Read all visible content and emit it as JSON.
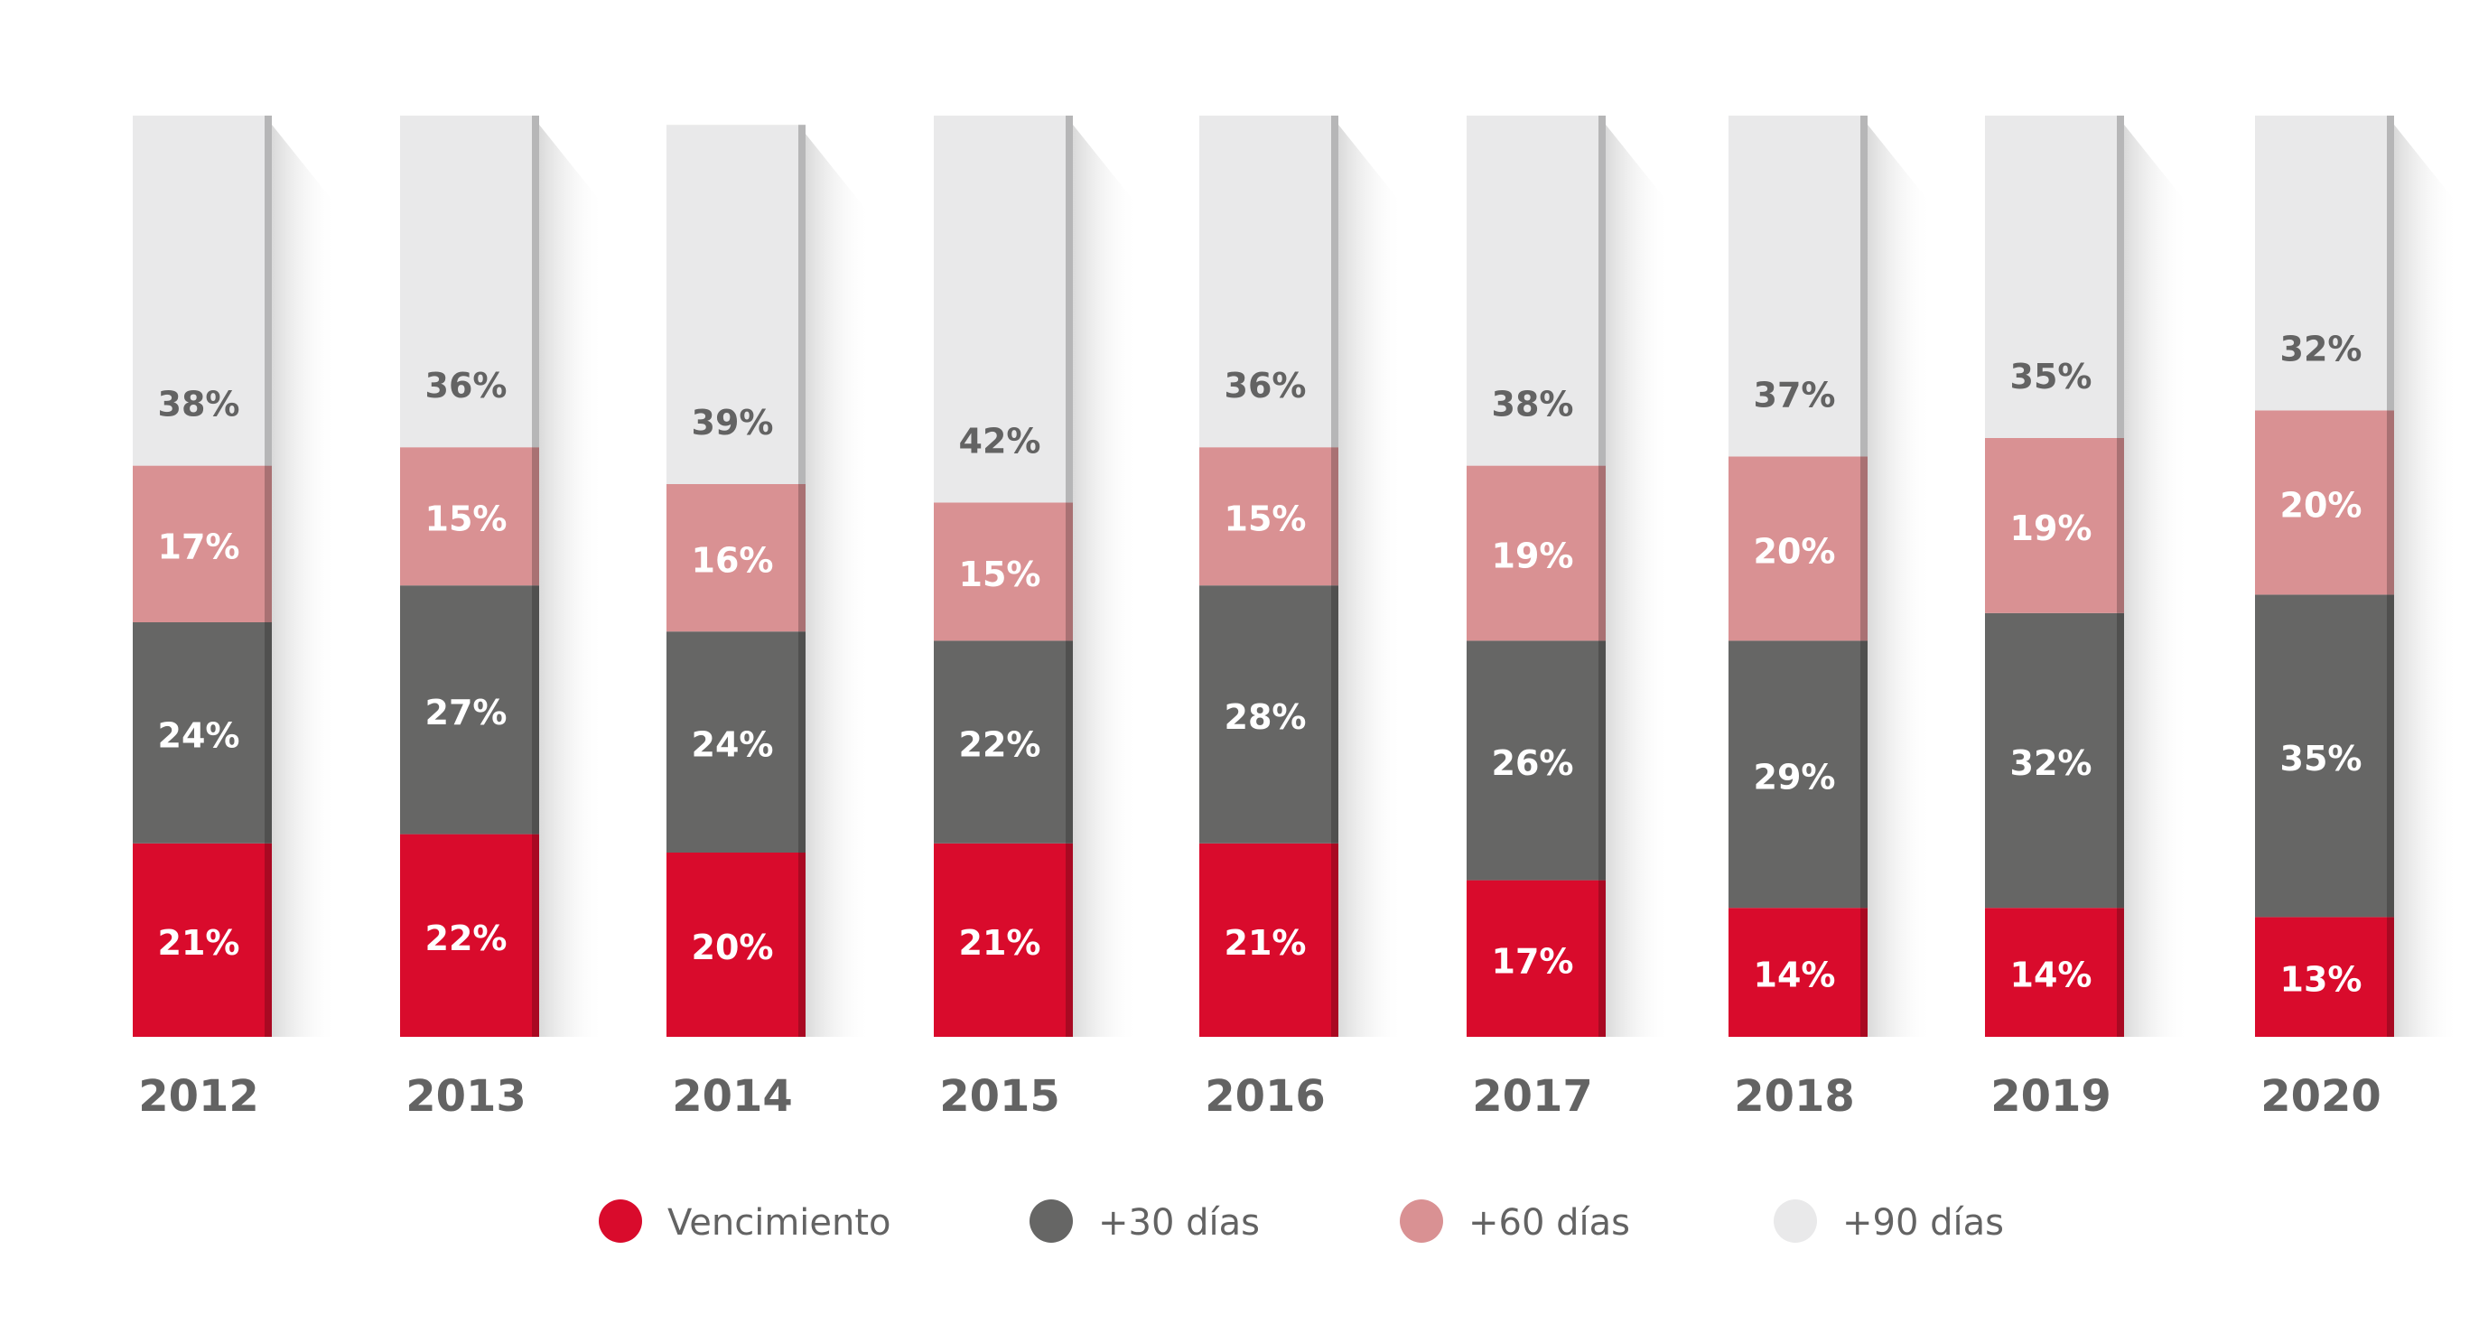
{
  "chart_data": {
    "type": "bar",
    "stacked": true,
    "percent": true,
    "categories": [
      "2012",
      "2013",
      "2014",
      "2015",
      "2016",
      "2017",
      "2018",
      "2019",
      "2020"
    ],
    "series": [
      {
        "name": "Vencimiento",
        "color": "#d90b2c",
        "label_color": "#ffffff",
        "values": [
          21,
          22,
          20,
          21,
          21,
          17,
          14,
          14,
          13
        ]
      },
      {
        "name": "+30 días",
        "color": "#666665",
        "label_color": "#ffffff",
        "values": [
          24,
          27,
          24,
          22,
          28,
          26,
          29,
          32,
          35
        ]
      },
      {
        "name": "+60 días",
        "color": "#d99193",
        "label_color": "#ffffff",
        "values": [
          17,
          15,
          16,
          15,
          15,
          19,
          20,
          19,
          20
        ]
      },
      {
        "name": "+90 días",
        "color": "#e9e9ea",
        "label_color": "#636363",
        "values": [
          38,
          36,
          39,
          42,
          36,
          38,
          37,
          35,
          32
        ]
      }
    ],
    "value_suffix": "%",
    "legend_position": "bottom",
    "grid": false,
    "ylim": [
      0,
      100
    ]
  }
}
